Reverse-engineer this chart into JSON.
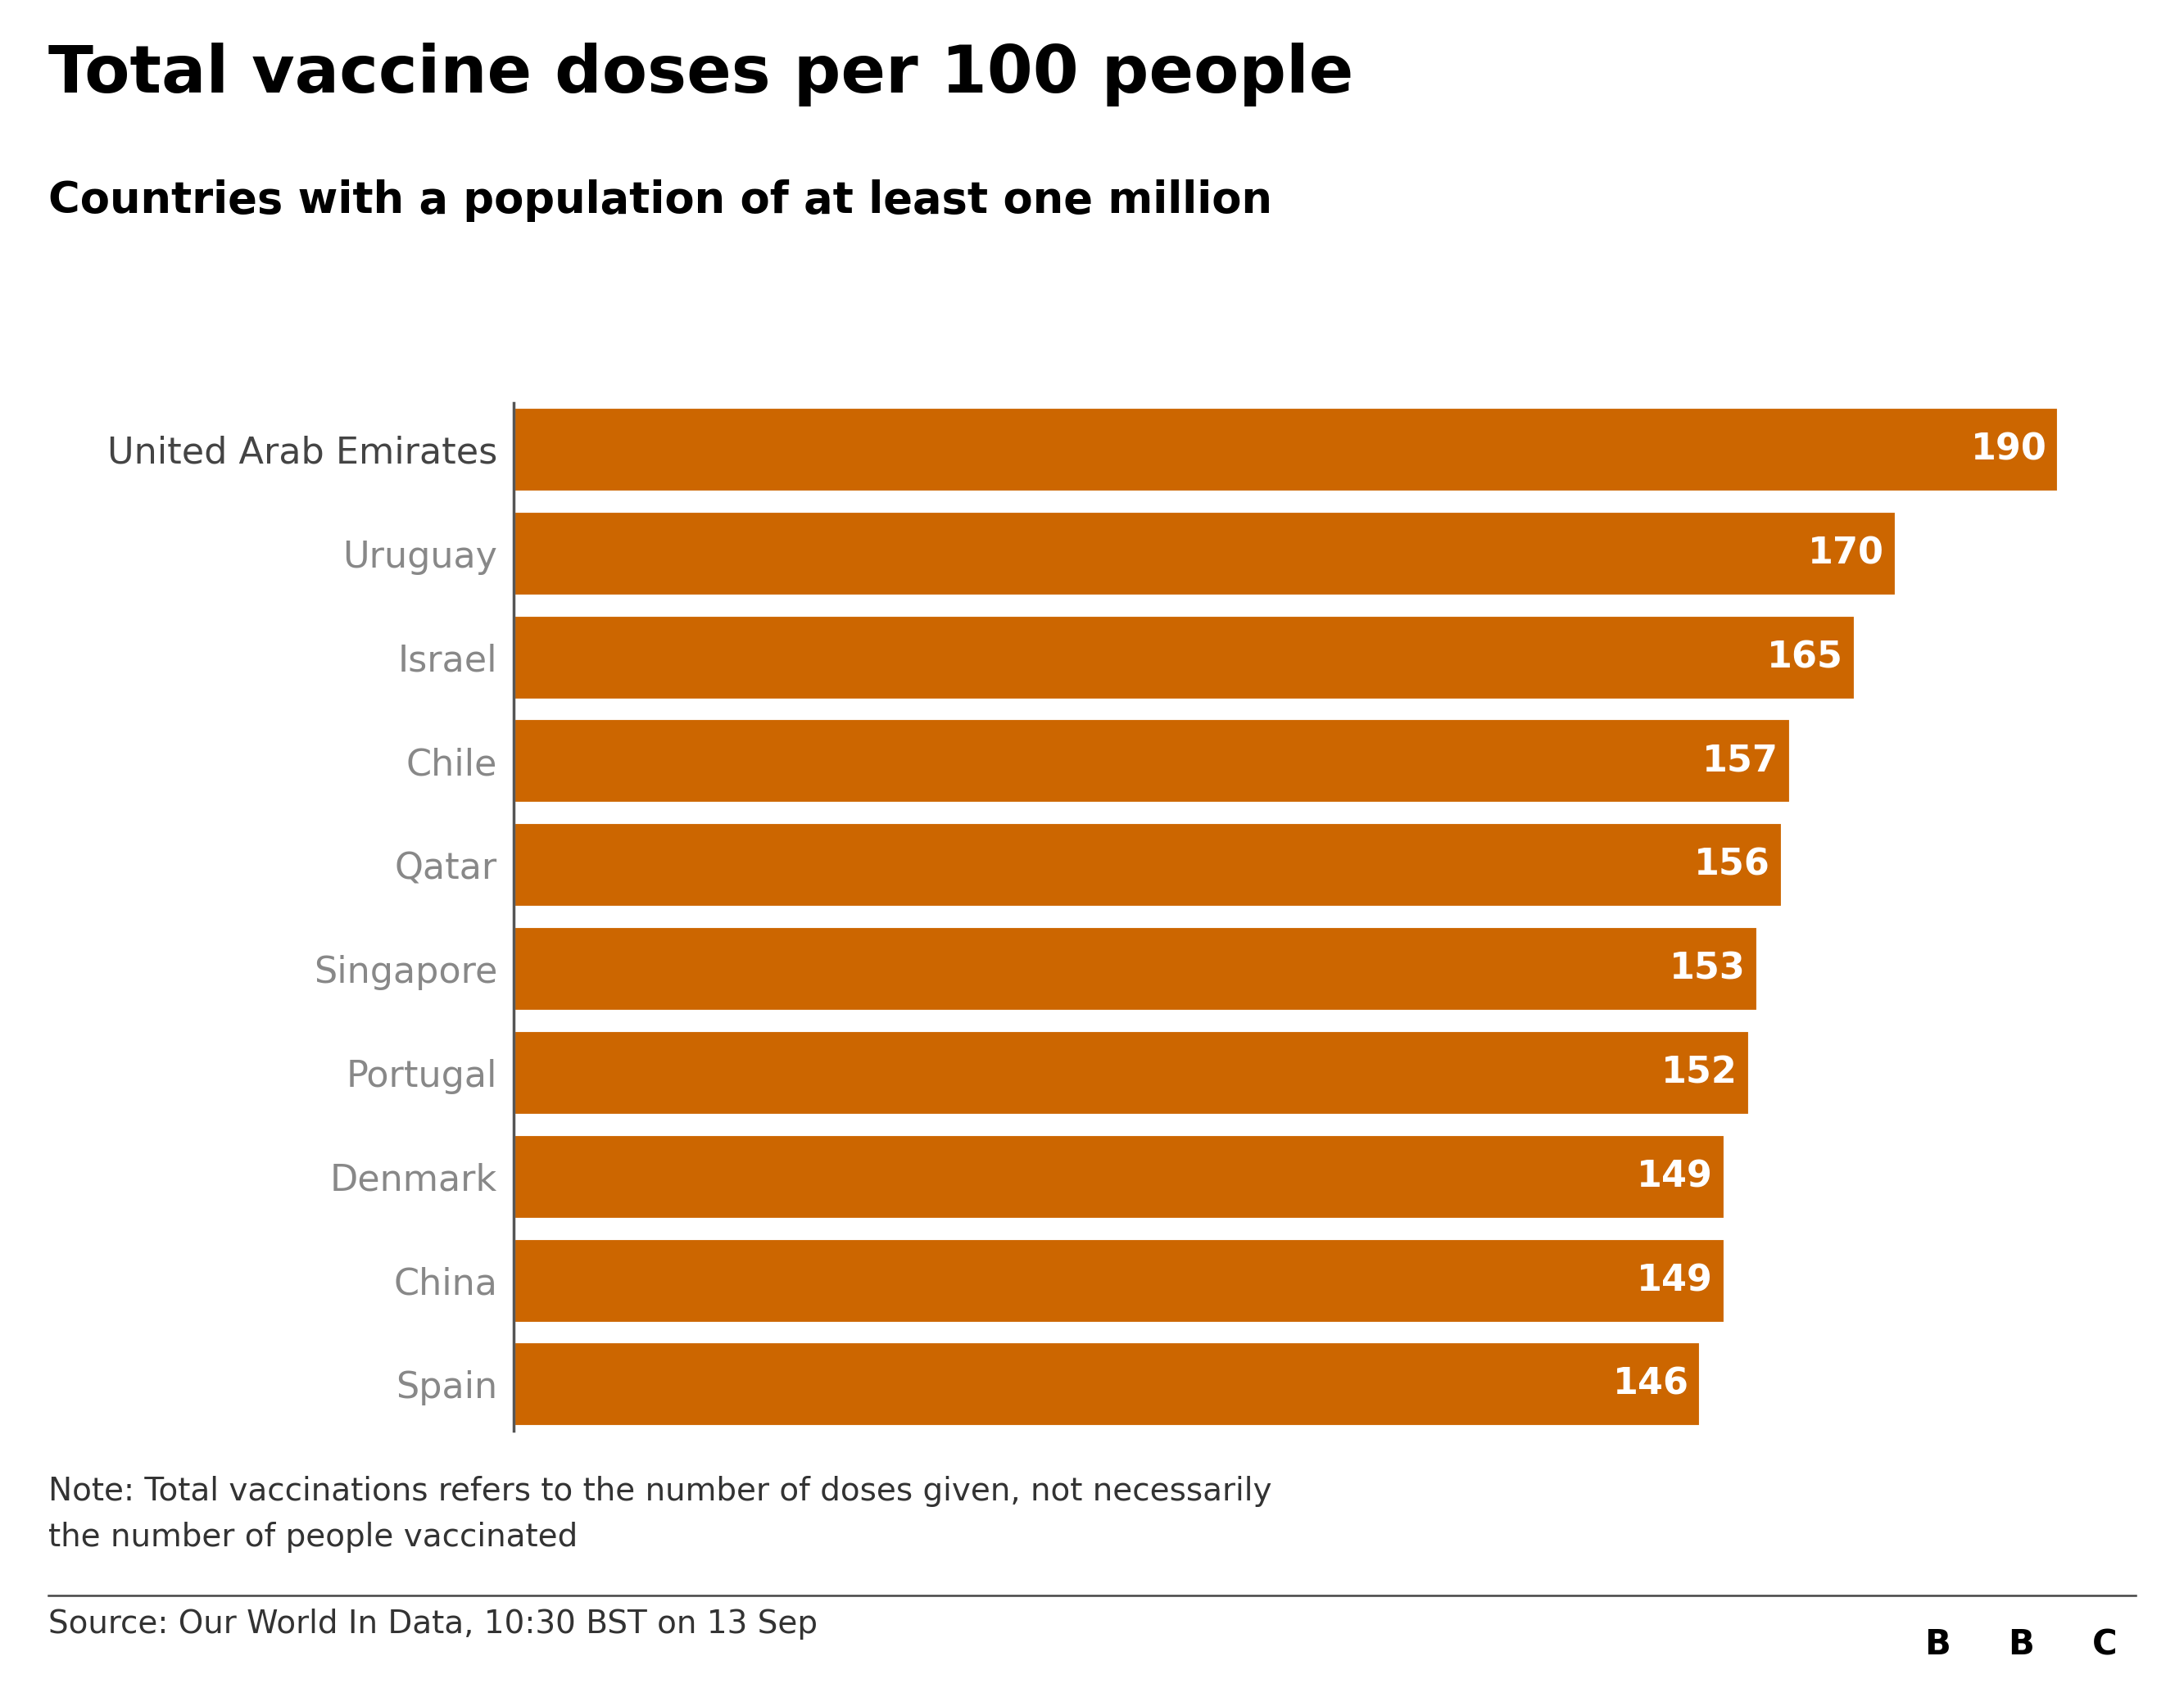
{
  "title": "Total vaccine doses per 100 people",
  "subtitle": "Countries with a population of at least one million",
  "countries": [
    "United Arab Emirates",
    "Uruguay",
    "Israel",
    "Chile",
    "Qatar",
    "Singapore",
    "Portugal",
    "Denmark",
    "China",
    "Spain"
  ],
  "values": [
    190,
    170,
    165,
    157,
    156,
    153,
    152,
    149,
    149,
    146
  ],
  "bar_color": "#cc6600",
  "bar_gap_color": "#ffffff",
  "label_color": "#ffffff",
  "country_label_color": "#888888",
  "title_color": "#000000",
  "subtitle_color": "#000000",
  "background_color": "#ffffff",
  "note_text": "Note: Total vaccinations refers to the number of doses given, not necessarily\nthe number of people vaccinated",
  "source_text": "Source: Our World In Data, 10:30 BST on 13 Sep",
  "xlim_max": 200,
  "title_fontsize": 58,
  "subtitle_fontsize": 38,
  "country_fontsize": 32,
  "value_fontsize": 32,
  "note_fontsize": 28,
  "source_fontsize": 28,
  "bbc_fontsize": 30
}
